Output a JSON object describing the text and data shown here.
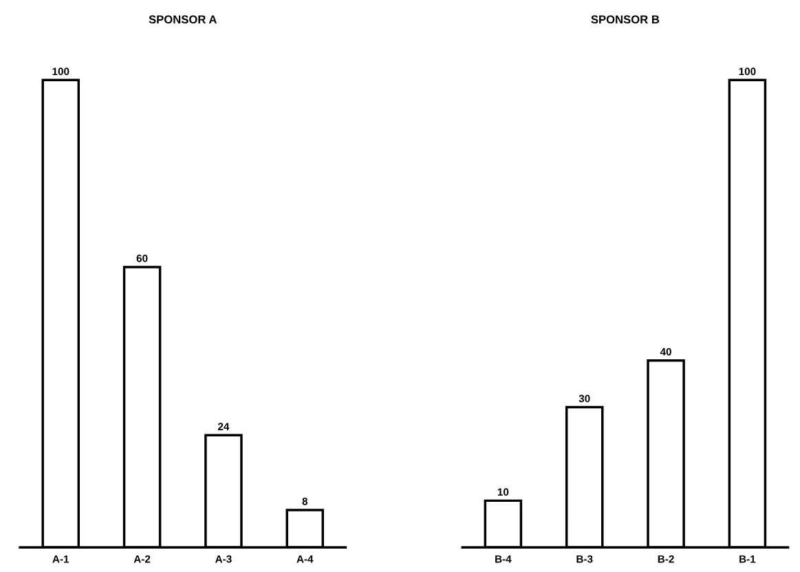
{
  "chart_data": [
    {
      "type": "bar",
      "title": "SPONSOR A",
      "categories": [
        "A-1",
        "A-2",
        "A-3",
        "A-4"
      ],
      "values": [
        100,
        60,
        24,
        8
      ],
      "color": "#ffffff",
      "data_labels": true,
      "tick_labels": "x"
    },
    {
      "type": "bar",
      "title": "SPONSOR B",
      "categories": [
        "B-4",
        "B-3",
        "B-2",
        "B-1"
      ],
      "values": [
        10,
        30,
        40,
        100
      ],
      "color": "#ffffff",
      "data_labels": true,
      "tick_labels": "x"
    }
  ]
}
